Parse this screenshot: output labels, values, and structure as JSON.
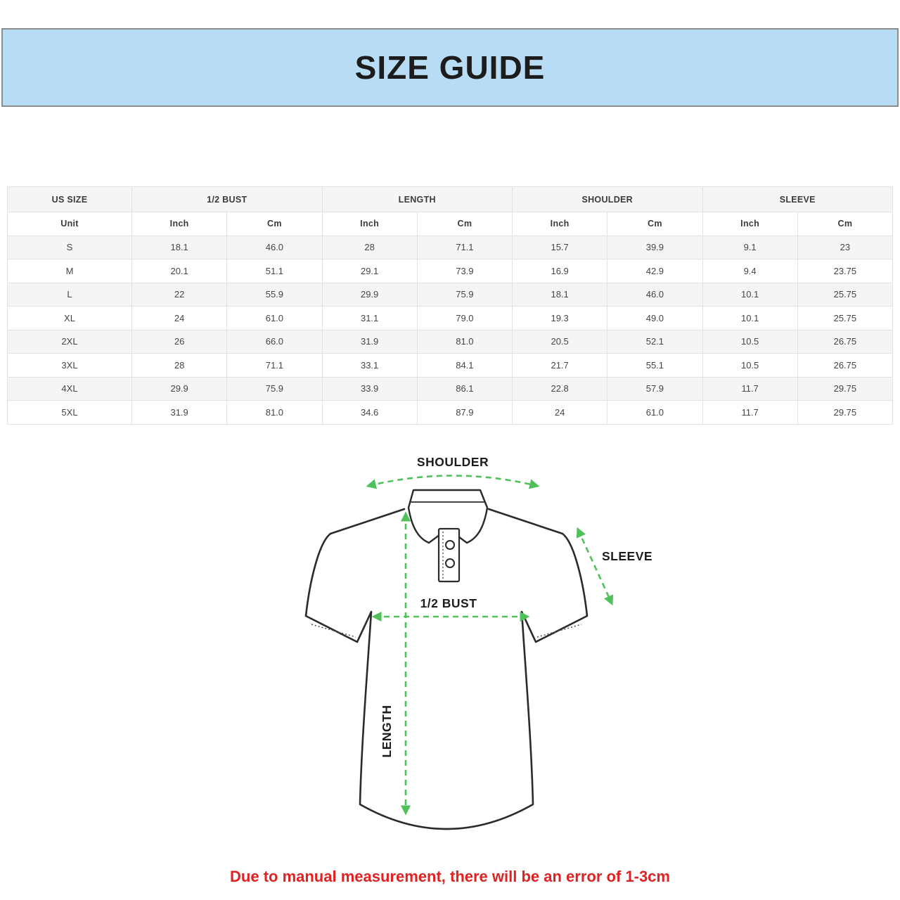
{
  "banner": {
    "title": "SIZE GUIDE",
    "bg_color": "#b8dcf4"
  },
  "table": {
    "groups": [
      {
        "label": "US SIZE"
      },
      {
        "label": "1/2 BUST"
      },
      {
        "label": "LENGTH"
      },
      {
        "label": "SHOULDER"
      },
      {
        "label": "SLEEVE"
      }
    ],
    "unit_row": {
      "first": "Unit",
      "units": [
        "Inch",
        "Cm",
        "Inch",
        "Cm",
        "Inch",
        "Cm",
        "Inch",
        "Cm"
      ]
    },
    "rows": [
      {
        "size": "S",
        "values": [
          "18.1",
          "46.0",
          "28",
          "71.1",
          "15.7",
          "39.9",
          "9.1",
          "23"
        ]
      },
      {
        "size": "M",
        "values": [
          "20.1",
          "51.1",
          "29.1",
          "73.9",
          "16.9",
          "42.9",
          "9.4",
          "23.75"
        ]
      },
      {
        "size": "L",
        "values": [
          "22",
          "55.9",
          "29.9",
          "75.9",
          "18.1",
          "46.0",
          "10.1",
          "25.75"
        ]
      },
      {
        "size": "XL",
        "values": [
          "24",
          "61.0",
          "31.1",
          "79.0",
          "19.3",
          "49.0",
          "10.1",
          "25.75"
        ]
      },
      {
        "size": "2XL",
        "values": [
          "26",
          "66.0",
          "31.9",
          "81.0",
          "20.5",
          "52.1",
          "10.5",
          "26.75"
        ]
      },
      {
        "size": "3XL",
        "values": [
          "28",
          "71.1",
          "33.1",
          "84.1",
          "21.7",
          "55.1",
          "10.5",
          "26.75"
        ]
      },
      {
        "size": "4XL",
        "values": [
          "29.9",
          "75.9",
          "33.9",
          "86.1",
          "22.8",
          "57.9",
          "11.7",
          "29.75"
        ]
      },
      {
        "size": "5XL",
        "values": [
          "31.9",
          "81.0",
          "34.6",
          "87.9",
          "24",
          "61.0",
          "11.7",
          "29.75"
        ]
      }
    ]
  },
  "diagram": {
    "labels": {
      "shoulder": "SHOULDER",
      "sleeve": "SLEEVE",
      "bust": "1/2 BUST",
      "length": "LENGTH"
    },
    "arrow_color": "#4fc15a",
    "outline_color": "#2b2b2b"
  },
  "note": {
    "text": "Due to manual measurement, there will be an error of 1-3cm",
    "color": "#e02222"
  }
}
